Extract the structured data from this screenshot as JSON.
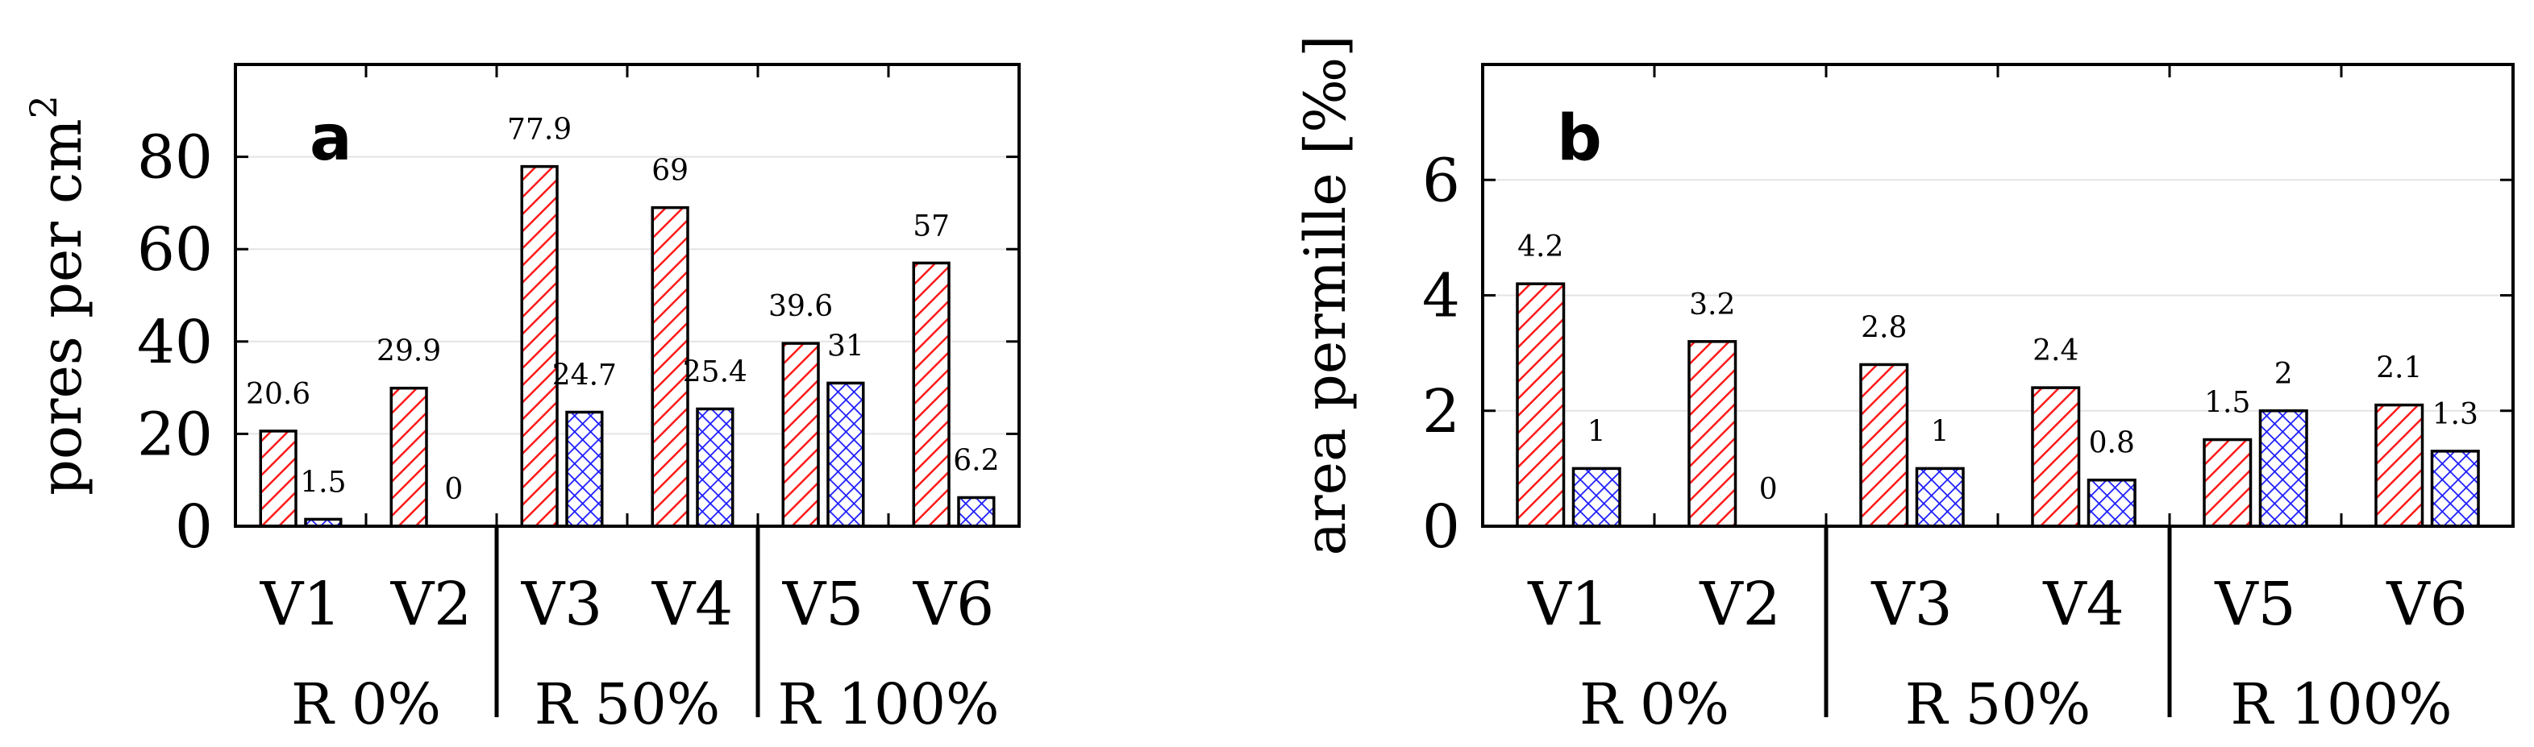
{
  "chart_data": [
    {
      "type": "bar",
      "panel_label": "a",
      "ylabel": "pores per cm",
      "ylabel_superscript": "2",
      "ylim": [
        0,
        100
      ],
      "yticks": [
        "0",
        "20",
        "40",
        "60",
        "80"
      ],
      "grid": "horizontal",
      "categories": [
        "V1",
        "V2",
        "V3",
        "V4",
        "V5",
        "V6"
      ],
      "groups": [
        "R 0%",
        "R 50%",
        "R 100%"
      ],
      "series": [
        {
          "pattern": "diagonal-hatch",
          "color": "#ff0000",
          "values": [
            20.6,
            29.9,
            77.9,
            69,
            39.6,
            57
          ],
          "labels": [
            "20.6",
            "29.9",
            "77.9",
            "69",
            "39.6",
            "57"
          ]
        },
        {
          "pattern": "crosshatch",
          "color": "#0000ff",
          "values": [
            1.5,
            0,
            24.7,
            25.4,
            31,
            6.2
          ],
          "labels": [
            "1.5",
            "0",
            "24.7",
            "25.4",
            "31",
            "6.2"
          ]
        }
      ]
    },
    {
      "type": "bar",
      "panel_label": "b",
      "ylabel": "area permille [‰]",
      "ylim": [
        0,
        8
      ],
      "yticks": [
        "0",
        "2",
        "4",
        "6"
      ],
      "grid": "horizontal",
      "categories": [
        "V1",
        "V2",
        "V3",
        "V4",
        "V5",
        "V6"
      ],
      "groups": [
        "R 0%",
        "R 50%",
        "R 100%"
      ],
      "series": [
        {
          "pattern": "diagonal-hatch",
          "color": "#ff0000",
          "values": [
            4.2,
            3.2,
            2.8,
            2.4,
            1.5,
            2.1
          ],
          "labels": [
            "4.2",
            "3.2",
            "2.8",
            "2.4",
            "1.5",
            "2.1"
          ]
        },
        {
          "pattern": "crosshatch",
          "color": "#0000ff",
          "values": [
            1,
            0,
            1,
            0.8,
            2,
            1.3
          ],
          "labels": [
            "1",
            "0",
            "1",
            "0.8",
            "2",
            "1.3"
          ]
        }
      ]
    }
  ]
}
